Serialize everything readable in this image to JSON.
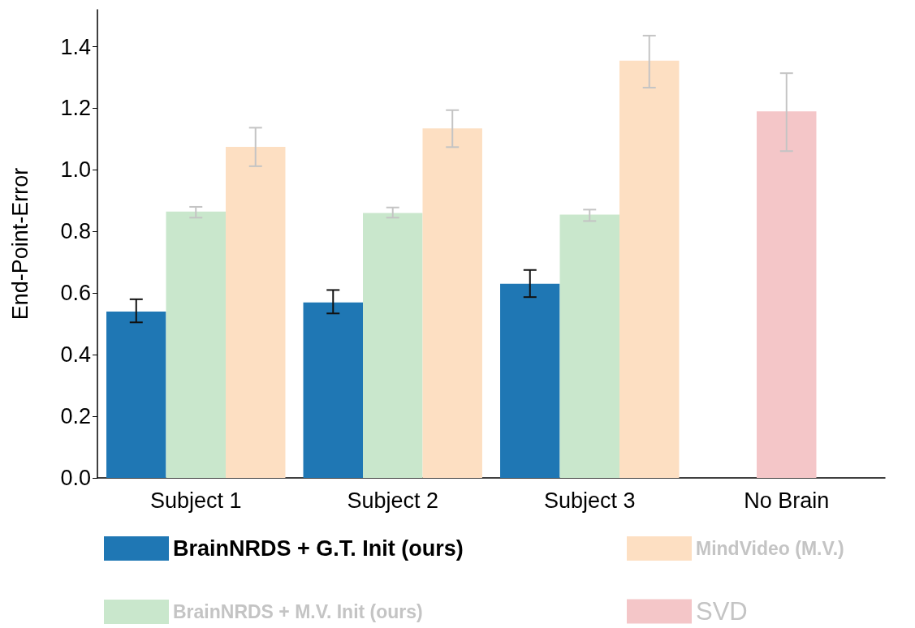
{
  "chart_data": {
    "type": "bar",
    "ylabel": "End-Point-Error",
    "categories": [
      "Subject 1",
      "Subject 2",
      "Subject 3",
      "No Brain"
    ],
    "ylim": [
      0,
      1.52
    ],
    "yticks": [
      {
        "value": 0,
        "label": "0.0"
      },
      {
        "value": 0.2,
        "label": "0.2"
      },
      {
        "value": 0.4,
        "label": "0.4"
      },
      {
        "value": 0.6,
        "label": "0.6"
      },
      {
        "value": 0.8,
        "label": "0.8"
      },
      {
        "value": 1.0,
        "label": "1.0"
      },
      {
        "value": 1.2,
        "label": "1.2"
      },
      {
        "value": 1.4,
        "label": "1.4"
      }
    ],
    "grid": false,
    "legend": "bottom",
    "series": [
      {
        "name": "BrainNRDS + G.T. Init (ours)",
        "color": "#1f77b4",
        "values": [
          0.54,
          0.57,
          0.63,
          null
        ],
        "errors": [
          [
            0.505,
            0.58
          ],
          [
            0.534,
            0.61
          ],
          [
            0.587,
            0.675
          ],
          null
        ]
      },
      {
        "name": "BrainNRDS + M.V. Init (ours)",
        "color": "#c9e7cc",
        "values": [
          0.865,
          0.86,
          0.855,
          null
        ],
        "errors": [
          [
            0.845,
            0.88
          ],
          [
            0.845,
            0.878
          ],
          [
            0.834,
            0.871
          ],
          null
        ]
      },
      {
        "name": "MindVideo (M.V.)",
        "color": "#fddfc2",
        "values": [
          1.075,
          1.135,
          1.355,
          null
        ],
        "errors": [
          [
            1.012,
            1.137
          ],
          [
            1.074,
            1.194
          ],
          [
            1.267,
            1.436
          ],
          null
        ]
      },
      {
        "name": "SVD",
        "color": "#f4c6c8",
        "values": [
          null,
          null,
          null,
          1.19
        ],
        "errors": [
          null,
          null,
          null,
          [
            1.061,
            1.314
          ]
        ]
      }
    ]
  }
}
